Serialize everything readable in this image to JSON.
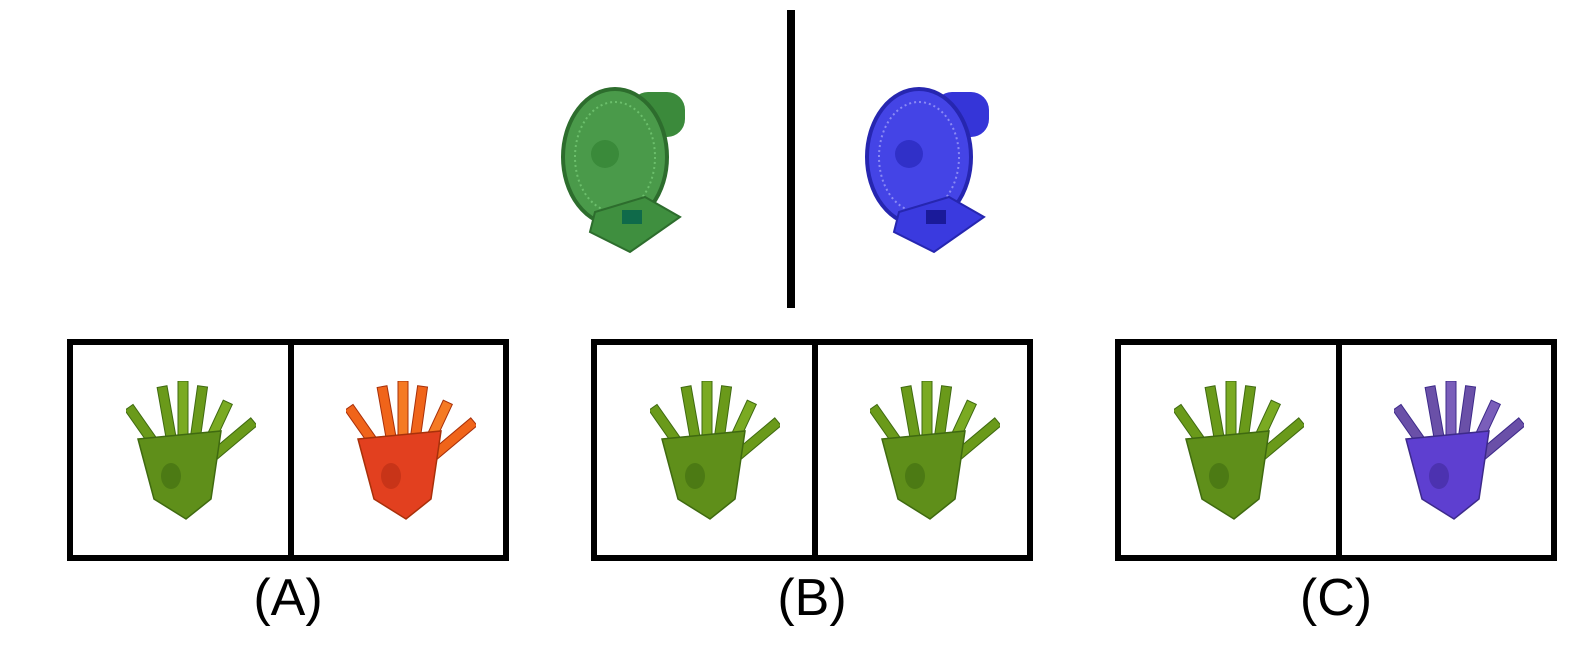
{
  "prompt": {
    "left_fan": {
      "icon": "fan-icon",
      "color": "#3f8f3f"
    },
    "right_fan": {
      "icon": "fan-icon",
      "color": "#3a3adf"
    }
  },
  "options": [
    {
      "label": "(A)",
      "left_color": "#5f8f1a",
      "right_color": "#e2401f"
    },
    {
      "label": "(B)",
      "left_color": "#5f8f1a",
      "right_color": "#5f8f1a"
    },
    {
      "label": "(C)",
      "left_color": "#5f8f1a",
      "right_color": "#5e3fd0"
    }
  ]
}
